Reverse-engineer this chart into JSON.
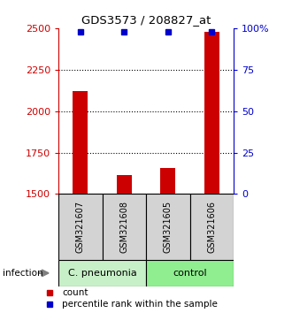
{
  "title": "GDS3573 / 208827_at",
  "samples": [
    "GSM321607",
    "GSM321608",
    "GSM321605",
    "GSM321606"
  ],
  "counts": [
    2120,
    1615,
    1655,
    2480
  ],
  "percentile_ranks": [
    98,
    98,
    98,
    98
  ],
  "y_min": 1500,
  "y_max": 2500,
  "y_ticks": [
    1500,
    1750,
    2000,
    2250,
    2500
  ],
  "y_tick_labels": [
    "1500",
    "1750",
    "2000",
    "2250",
    "2500"
  ],
  "right_y_ticks": [
    0,
    25,
    50,
    75,
    100
  ],
  "right_y_tick_labels": [
    "0",
    "25",
    "50",
    "75",
    "100%"
  ],
  "bar_color": "#cc0000",
  "dot_color": "#0000cc",
  "groups": [
    {
      "label": "C. pneumonia",
      "indices": [
        0,
        1
      ],
      "color": "#c8f0c8"
    },
    {
      "label": "control",
      "indices": [
        2,
        3
      ],
      "color": "#90ee90"
    }
  ],
  "group_row_label": "infection",
  "legend_count_label": "count",
  "legend_pct_label": "percentile rank within the sample",
  "background_color": "#ffffff",
  "plot_bg_color": "#ffffff",
  "left_label_color": "#cc0000",
  "right_label_color": "#0000cc",
  "sample_box_color": "#d3d3d3",
  "bar_width": 0.35
}
